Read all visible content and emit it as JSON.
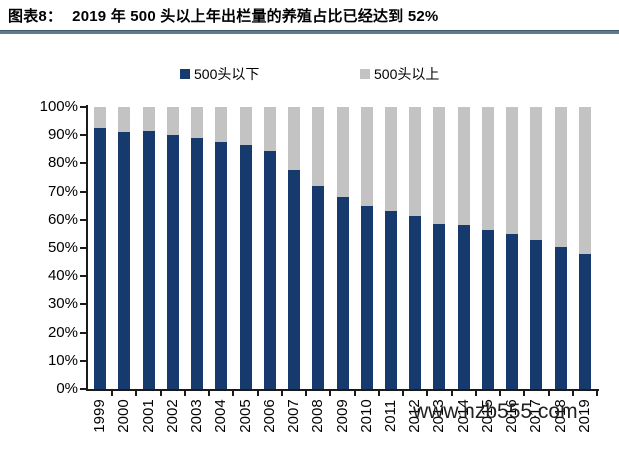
{
  "title": {
    "prefix": "图表8：",
    "main": "2019 年 500 头以上年出栏量的养殖占比已经达到 52%"
  },
  "legend": {
    "items": [
      {
        "label": "500头以下",
        "color": "#16396E"
      },
      {
        "label": "500头以上",
        "color": "#C3C3C3"
      }
    ]
  },
  "watermark": "www.nzb555.com",
  "colors": {
    "below500": "#16396E",
    "above500": "#C3C3C3",
    "axis": "#1a1a1a",
    "title_rule": "#5c7a90"
  },
  "chart_data": {
    "type": "bar",
    "stacked": true,
    "title": "图表8： 2019 年 500 头以上年出栏量的养殖占比已经达到 52%",
    "categories": [
      "1999",
      "2000",
      "2001",
      "2002",
      "2003",
      "2004",
      "2005",
      "2006",
      "2007",
      "2008",
      "2009",
      "2010",
      "2011",
      "2012",
      "2013",
      "2014",
      "2015",
      "2016",
      "2017",
      "2018",
      "2019"
    ],
    "series": [
      {
        "name": "500头以下",
        "color": "#16396E",
        "values": [
          92.5,
          91,
          91.5,
          90,
          89,
          87.5,
          86.5,
          84.5,
          77.5,
          72,
          68,
          65,
          63,
          61.5,
          58.5,
          58,
          56.5,
          55,
          53,
          50.5,
          48
        ]
      },
      {
        "name": "500头以上",
        "color": "#C3C3C3",
        "values": [
          7.5,
          9,
          8.5,
          10,
          11,
          12.5,
          13.5,
          15.5,
          22.5,
          28,
          32,
          35,
          37,
          38.5,
          41.5,
          42,
          43.5,
          45,
          47,
          49.5,
          52
        ]
      }
    ],
    "xlabel": "",
    "ylabel": "",
    "ylim": [
      0,
      100
    ],
    "ytick_step": 10,
    "ytick_format": "percent",
    "grid": false,
    "legend_position": "top"
  }
}
